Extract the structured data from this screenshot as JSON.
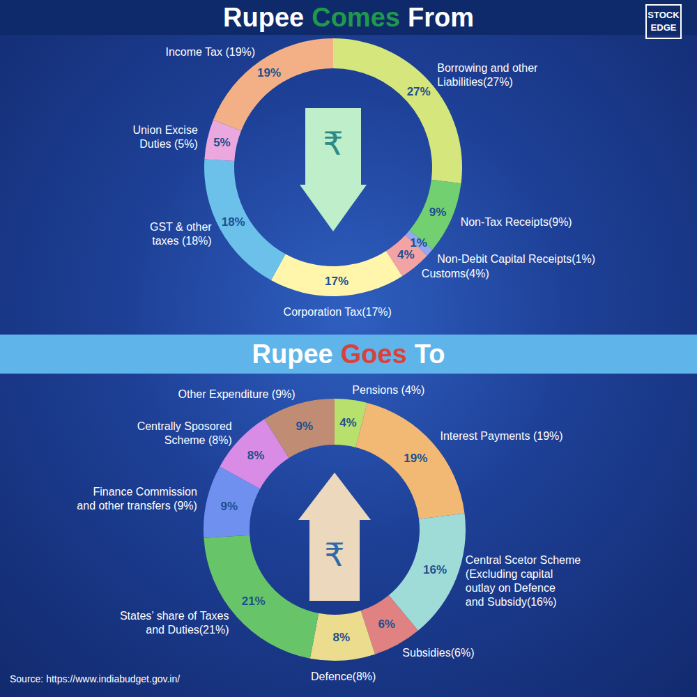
{
  "chart_data": [
    {
      "type": "pie",
      "title": "Rupee Comes From",
      "categories": [
        "Borrowing and other\nLiabilities(27%)",
        "Non-Tax Receipts(9%)",
        "Non-Debit Capital Receipts(1%)",
        "Customs(4%)",
        "Corporation Tax(17%)",
        "GST & other\ntaxes (18%)",
        "Union Excise\nDuties (5%)",
        "Income Tax (19%)"
      ],
      "values": [
        27,
        9,
        1,
        4,
        17,
        18,
        5,
        19
      ],
      "value_labels": [
        "27%",
        "9%",
        "1%",
        "4%",
        "17%",
        "18%",
        "5%",
        "19%"
      ],
      "data_labels": true,
      "colors": [
        "#d5e67c",
        "#72d070",
        "#93a9ec",
        "#f3a3a3",
        "#fff6ab",
        "#6cc1ea",
        "#eaa8de",
        "#f3b087"
      ]
    },
    {
      "type": "pie",
      "title": "Rupee Goes To",
      "categories": [
        "Pensions (4%)",
        "Interest Payments (19%)",
        "Central Scetor Scheme\n(Excluding capital\noutlay on Defence\nand Subsidy(16%)",
        "Subsidies(6%)",
        "Defence(8%)",
        "States’ share of Taxes\nand Duties(21%)",
        "Finance Commission\nand other transfers (9%)",
        "Centrally Sposored\nScheme (8%)",
        "Other Expenditure (9%)"
      ],
      "values": [
        4,
        19,
        16,
        6,
        8,
        21,
        9,
        8,
        9
      ],
      "value_labels": [
        "4%",
        "19%",
        "16%",
        "6%",
        "8%",
        "21%",
        "9%",
        "8%",
        "9%"
      ],
      "data_labels": true,
      "colors": [
        "#b8e06c",
        "#f2b974",
        "#9fdcd8",
        "#e08282",
        "#ecdc8e",
        "#68c468",
        "#7090f0",
        "#d88ce6",
        "#c08c74"
      ]
    }
  ],
  "symbol": "₹",
  "brand": "STOCK EDGE",
  "source": "Source: https://www.indiabudget.gov.in/"
}
